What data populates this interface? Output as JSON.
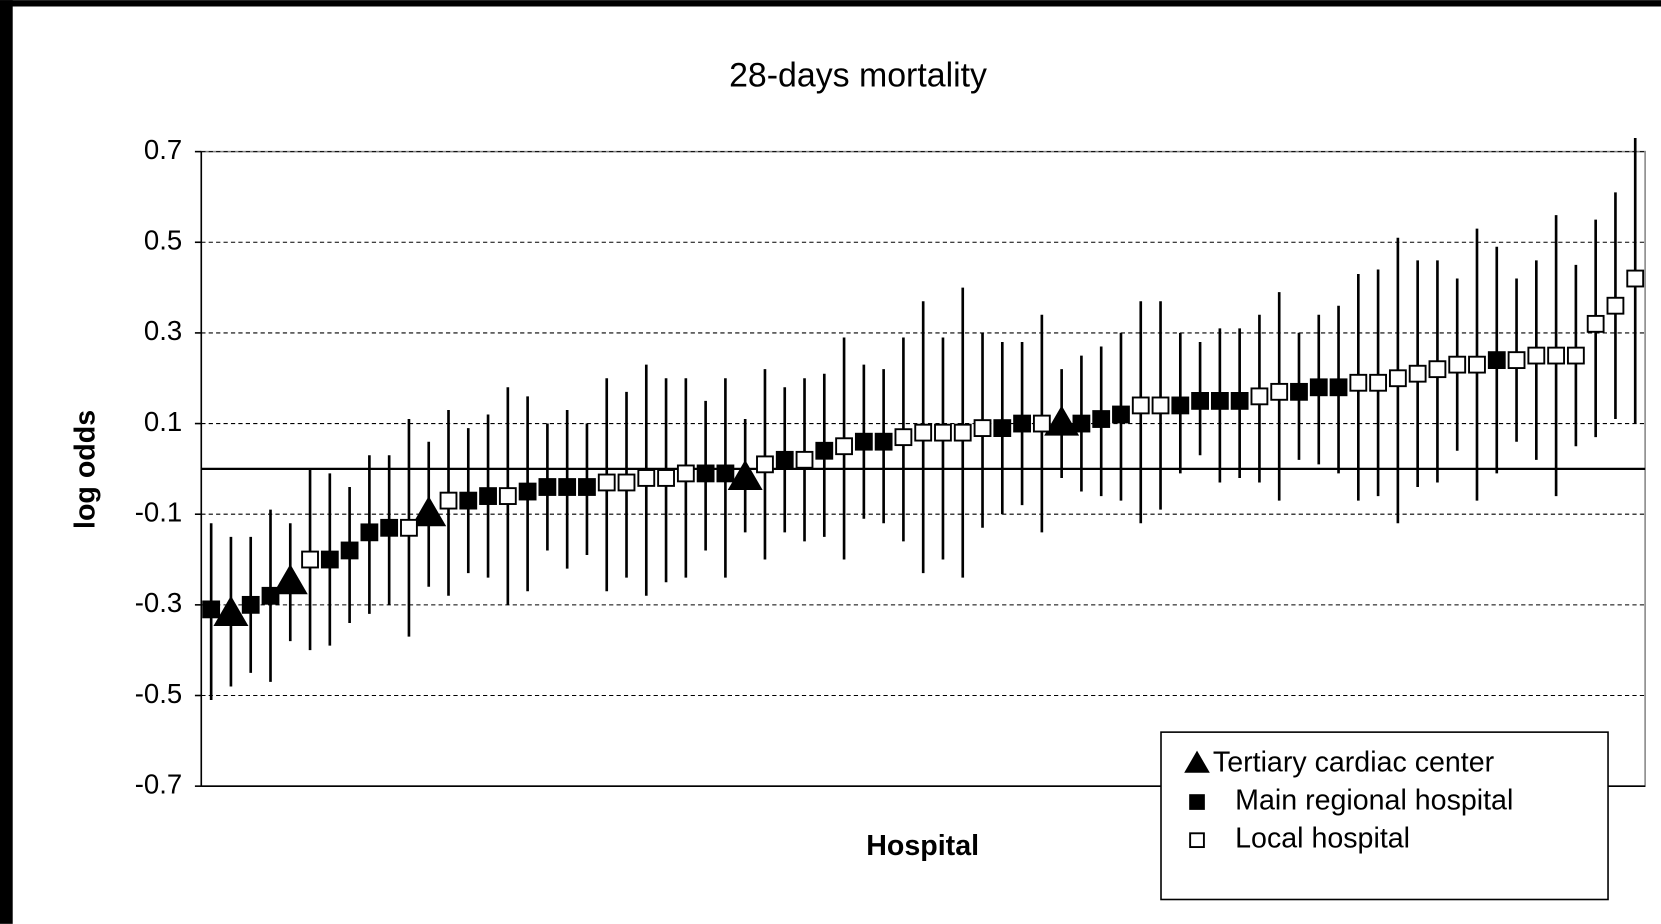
{
  "chart_data": {
    "type": "errorbar",
    "title": "28-days mortality",
    "ylabel": "log odds",
    "xlabel": "Hospital",
    "ylim": [
      -0.7,
      0.7
    ],
    "yticks": [
      -0.7,
      -0.5,
      -0.3,
      -0.1,
      0.1,
      0.3,
      0.5,
      0.7
    ],
    "grid": true,
    "hline": 0,
    "legend": "lower-right",
    "categories": [
      null,
      null,
      null,
      null,
      null,
      null,
      null,
      null,
      null,
      null,
      null,
      null,
      null,
      null,
      null,
      null,
      null,
      null,
      null,
      null,
      null,
      null,
      null,
      null,
      null,
      null,
      null,
      null,
      null,
      null,
      null,
      null,
      null,
      null,
      null,
      null,
      null,
      null,
      null,
      null,
      null,
      null,
      null,
      null,
      null,
      null,
      null,
      null,
      null,
      null,
      null,
      null,
      null,
      null,
      null,
      null,
      null,
      null,
      null,
      null,
      null,
      null,
      null,
      null,
      null,
      null,
      null,
      null,
      null,
      null,
      null,
      null,
      null
    ],
    "series": [
      {
        "name": "Tertiary cardiac center",
        "marker": "triangle",
        "color": "#000000",
        "values": [
          null,
          -0.32,
          null,
          null,
          -0.25,
          null,
          null,
          null,
          null,
          null,
          null,
          -0.1,
          null,
          null,
          null,
          null,
          null,
          null,
          null,
          null,
          null,
          null,
          null,
          null,
          null,
          null,
          null,
          -0.02,
          null,
          null,
          null,
          null,
          null,
          null,
          null,
          null,
          null,
          null,
          null,
          null,
          null,
          null,
          null,
          0.1,
          null,
          null,
          null,
          null,
          null,
          null,
          null,
          null,
          null,
          null,
          null,
          null,
          null,
          null,
          null,
          null,
          null,
          null,
          null,
          null,
          null,
          null,
          null,
          null,
          null,
          null,
          null,
          null,
          null
        ],
        "lower": [
          null,
          -0.48,
          null,
          null,
          -0.38,
          null,
          null,
          null,
          null,
          null,
          null,
          -0.26,
          null,
          null,
          null,
          null,
          null,
          null,
          null,
          null,
          null,
          null,
          null,
          null,
          null,
          null,
          null,
          -0.14,
          null,
          null,
          null,
          null,
          null,
          null,
          null,
          null,
          null,
          null,
          null,
          null,
          null,
          null,
          null,
          -0.02,
          null,
          null,
          null,
          null,
          null,
          null,
          null,
          null,
          null,
          null,
          null,
          null,
          null,
          null,
          null,
          null,
          null,
          null,
          null,
          null,
          null,
          null,
          null,
          null,
          null,
          null,
          null,
          null,
          null
        ],
        "upper": [
          null,
          -0.15,
          null,
          null,
          -0.12,
          null,
          null,
          null,
          null,
          null,
          null,
          0.06,
          null,
          null,
          null,
          null,
          null,
          null,
          null,
          null,
          null,
          null,
          null,
          null,
          null,
          null,
          null,
          0.11,
          null,
          null,
          null,
          null,
          null,
          null,
          null,
          null,
          null,
          null,
          null,
          null,
          null,
          null,
          null,
          0.22,
          null,
          null,
          null,
          null,
          null,
          null,
          null,
          null,
          null,
          null,
          null,
          null,
          null,
          null,
          null,
          null,
          null,
          null,
          null,
          null,
          null,
          null,
          null,
          null,
          null,
          null,
          null,
          null,
          null
        ]
      },
      {
        "name": "Main regional hospital",
        "marker": "filled-square",
        "color": "#000000",
        "values": [
          -0.31,
          null,
          -0.3,
          -0.28,
          null,
          null,
          -0.2,
          -0.18,
          -0.14,
          -0.13,
          null,
          null,
          null,
          -0.07,
          -0.06,
          null,
          -0.05,
          -0.04,
          -0.04,
          -0.04,
          null,
          null,
          null,
          null,
          null,
          -0.01,
          -0.01,
          null,
          null,
          0.02,
          null,
          0.04,
          null,
          0.06,
          0.06,
          null,
          null,
          null,
          null,
          null,
          0.09,
          0.1,
          null,
          null,
          0.1,
          0.11,
          0.12,
          null,
          null,
          0.14,
          0.15,
          0.15,
          0.15,
          null,
          null,
          0.17,
          0.18,
          0.18,
          null,
          null,
          null,
          null,
          null,
          null,
          null,
          0.24,
          null,
          null,
          null,
          null,
          null,
          null,
          null
        ],
        "lower": [
          -0.51,
          null,
          -0.45,
          -0.47,
          null,
          null,
          -0.39,
          -0.34,
          -0.32,
          -0.3,
          null,
          null,
          null,
          -0.23,
          -0.24,
          null,
          -0.27,
          -0.18,
          -0.22,
          -0.19,
          null,
          null,
          null,
          null,
          null,
          -0.18,
          -0.24,
          null,
          null,
          -0.14,
          null,
          -0.15,
          null,
          -0.11,
          -0.12,
          null,
          null,
          null,
          null,
          null,
          -0.1,
          -0.08,
          null,
          null,
          -0.05,
          -0.06,
          -0.07,
          null,
          null,
          -0.01,
          0.03,
          -0.03,
          -0.02,
          null,
          null,
          0.02,
          0.01,
          -0.01,
          null,
          null,
          null,
          null,
          null,
          null,
          null,
          -0.01,
          null,
          null,
          null,
          null,
          null,
          null,
          null
        ],
        "upper": [
          -0.12,
          null,
          -0.15,
          -0.09,
          null,
          null,
          -0.01,
          -0.04,
          0.03,
          0.03,
          null,
          null,
          null,
          0.09,
          0.12,
          null,
          0.16,
          0.1,
          0.13,
          0.1,
          null,
          null,
          null,
          null,
          null,
          0.15,
          0.2,
          null,
          null,
          0.18,
          null,
          0.21,
          null,
          0.23,
          0.22,
          null,
          null,
          null,
          null,
          null,
          0.28,
          0.28,
          null,
          null,
          0.25,
          0.27,
          0.3,
          null,
          null,
          0.3,
          0.28,
          0.31,
          0.31,
          null,
          null,
          0.3,
          0.34,
          0.36,
          null,
          null,
          null,
          null,
          null,
          null,
          null,
          0.49,
          null,
          null,
          null,
          null,
          null,
          null,
          null
        ]
      },
      {
        "name": "Local hospital",
        "marker": "open-square",
        "color": "#000000",
        "values": [
          null,
          null,
          null,
          null,
          null,
          -0.2,
          null,
          null,
          null,
          null,
          -0.13,
          null,
          -0.07,
          null,
          null,
          -0.06,
          null,
          null,
          null,
          null,
          -0.03,
          -0.03,
          -0.02,
          -0.02,
          -0.01,
          null,
          null,
          null,
          0.01,
          null,
          0.02,
          null,
          0.05,
          null,
          null,
          0.07,
          0.08,
          0.08,
          0.08,
          0.09,
          null,
          null,
          0.1,
          null,
          null,
          null,
          null,
          0.14,
          0.14,
          null,
          null,
          null,
          null,
          0.16,
          0.17,
          null,
          null,
          null,
          0.19,
          0.19,
          0.2,
          0.21,
          0.22,
          0.23,
          0.23,
          null,
          0.24,
          0.25,
          0.25,
          0.25,
          0.32,
          0.36,
          0.42
        ],
        "lower": [
          null,
          null,
          null,
          null,
          null,
          -0.4,
          null,
          null,
          null,
          null,
          -0.37,
          null,
          -0.28,
          null,
          null,
          -0.3,
          null,
          null,
          null,
          null,
          -0.27,
          -0.24,
          -0.28,
          -0.25,
          -0.24,
          null,
          null,
          null,
          -0.2,
          null,
          -0.16,
          null,
          -0.2,
          null,
          null,
          -0.16,
          -0.23,
          -0.2,
          -0.24,
          -0.13,
          null,
          null,
          -0.14,
          null,
          null,
          null,
          null,
          -0.12,
          -0.09,
          null,
          null,
          null,
          null,
          -0.03,
          -0.07,
          null,
          null,
          null,
          -0.07,
          -0.06,
          -0.12,
          -0.04,
          -0.03,
          0.04,
          -0.07,
          null,
          0.06,
          0.02,
          -0.06,
          0.05,
          0.07,
          0.11,
          0.1
        ],
        "upper": [
          null,
          null,
          null,
          null,
          null,
          0,
          null,
          null,
          null,
          null,
          0.11,
          null,
          0.13,
          null,
          null,
          0.18,
          null,
          null,
          null,
          null,
          0.2,
          0.17,
          0.23,
          0.2,
          0.2,
          null,
          null,
          null,
          0.22,
          null,
          0.2,
          null,
          0.29,
          null,
          null,
          0.29,
          0.37,
          0.29,
          0.4,
          0.3,
          null,
          null,
          0.34,
          null,
          null,
          null,
          null,
          0.37,
          0.37,
          null,
          null,
          null,
          null,
          0.34,
          0.39,
          null,
          null,
          null,
          0.43,
          0.44,
          0.51,
          0.46,
          0.46,
          0.42,
          0.53,
          null,
          0.42,
          0.46,
          0.56,
          0.45,
          0.55,
          0.61,
          0.73
        ]
      }
    ]
  }
}
